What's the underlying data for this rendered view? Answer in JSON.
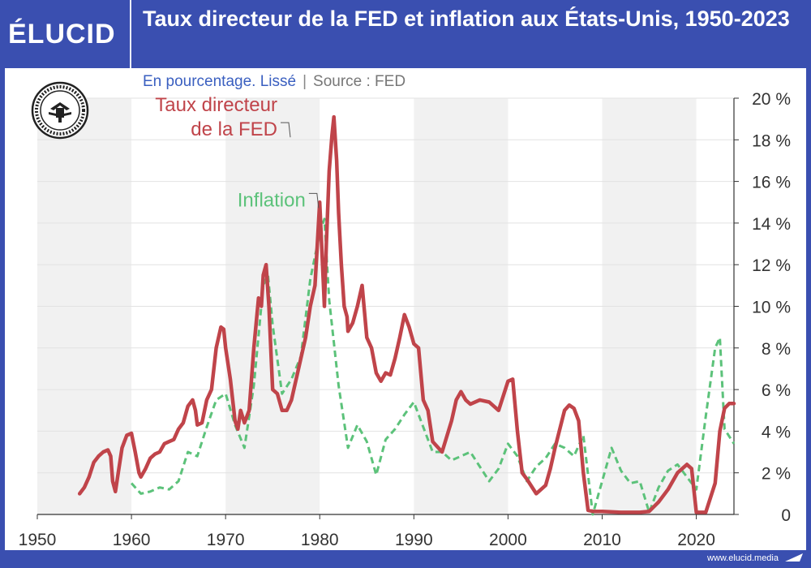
{
  "brand": {
    "logo_text": "ÉLUCID",
    "url": "www.elucid.media"
  },
  "title": "Taux directeur de la FED et inflation aux États-Unis, 1950-2023",
  "subtitle": {
    "main": "En pourcentage. Lissé",
    "separator": "|",
    "source": "Source : FED"
  },
  "seal_icon": "federal-reserve-seal-icon",
  "colors": {
    "header_bg": "#3a4fb0",
    "fed": "#c0444a",
    "inflation": "#5cc27a",
    "band": "#f1f1f1"
  },
  "chart_data": {
    "type": "line",
    "title": "Taux directeur de la FED et inflation aux États-Unis, 1950-2023",
    "xlim": [
      1950,
      2024
    ],
    "ylim": [
      0,
      20
    ],
    "x_ticks": [
      1950,
      1960,
      1970,
      1980,
      1990,
      2000,
      2010,
      2020
    ],
    "x_tick_labels": [
      "1950",
      "1960",
      "1970",
      "1980",
      "1990",
      "2000",
      "2010",
      "2020"
    ],
    "y_ticks": [
      0,
      2,
      4,
      6,
      8,
      10,
      12,
      14,
      16,
      18,
      20
    ],
    "y_tick_labels": [
      "0",
      "2 %",
      "4 %",
      "6 %",
      "8 %",
      "10 %",
      "12 %",
      "14 %",
      "16 %",
      "18 %",
      "20 %"
    ],
    "y_axis_side": "right",
    "grid": true,
    "series": [
      {
        "name": "Taux directeur de la FED",
        "style": "solid",
        "x": [
          1954.5,
          1955,
          1955.5,
          1956,
          1956.5,
          1957,
          1957.5,
          1957.8,
          1958,
          1958.3,
          1958.6,
          1959,
          1959.5,
          1960,
          1960.4,
          1960.8,
          1961,
          1961.5,
          1962,
          1962.5,
          1963,
          1963.5,
          1964,
          1964.5,
          1965,
          1965.5,
          1966,
          1966.5,
          1966.8,
          1967,
          1967.5,
          1968,
          1968.5,
          1969,
          1969.5,
          1969.8,
          1970,
          1970.5,
          1971,
          1971.3,
          1971.6,
          1972,
          1972.5,
          1973,
          1973.5,
          1973.8,
          1974,
          1974.3,
          1974.6,
          1974.9,
          1975,
          1975.5,
          1976,
          1976.5,
          1977,
          1977.5,
          1978,
          1978.5,
          1979,
          1979.5,
          1980,
          1980.3,
          1980.5,
          1980.7,
          1981,
          1981.3,
          1981.5,
          1981.8,
          1982,
          1982.3,
          1982.6,
          1982.9,
          1983,
          1983.5,
          1984,
          1984.5,
          1985,
          1985.5,
          1986,
          1986.5,
          1987,
          1987.5,
          1988,
          1988.5,
          1989,
          1989.5,
          1990,
          1990.5,
          1991,
          1991.5,
          1992,
          1993,
          1994,
          1994.5,
          1995,
          1995.5,
          1996,
          1997,
          1998,
          1999,
          2000,
          2000.5,
          2001,
          2001.5,
          2002,
          2003,
          2004,
          2004.5,
          2005,
          2006,
          2006.5,
          2007,
          2007.5,
          2008,
          2008.5,
          2009,
          2010,
          2012,
          2014,
          2015,
          2016,
          2017,
          2018,
          2019,
          2019.5,
          2020,
          2020.5,
          2021,
          2022,
          2022.5,
          2023,
          2023.5,
          2024
        ],
        "values": [
          1.0,
          1.3,
          1.8,
          2.5,
          2.8,
          3.0,
          3.1,
          2.8,
          1.6,
          1.1,
          2.0,
          3.2,
          3.8,
          3.9,
          3.0,
          2.0,
          1.8,
          2.2,
          2.7,
          2.9,
          3.0,
          3.4,
          3.5,
          3.6,
          4.1,
          4.4,
          5.2,
          5.5,
          5.0,
          4.3,
          4.4,
          5.5,
          6.0,
          8.0,
          9.0,
          8.9,
          8.0,
          6.5,
          4.5,
          4.1,
          5.0,
          4.4,
          5.0,
          8.0,
          10.4,
          10.0,
          11.5,
          12.0,
          10.0,
          7.0,
          6.0,
          5.8,
          5.0,
          5.0,
          5.5,
          6.5,
          7.5,
          8.5,
          10.0,
          11.0,
          15.0,
          12.0,
          10.0,
          13.0,
          16.5,
          18.2,
          19.1,
          17.0,
          14.5,
          12.0,
          10.0,
          9.5,
          8.8,
          9.2,
          10.0,
          11.0,
          8.5,
          8.0,
          6.8,
          6.4,
          6.8,
          6.7,
          7.5,
          8.5,
          9.6,
          9.0,
          8.2,
          8.0,
          5.5,
          5.0,
          3.5,
          3.0,
          4.5,
          5.5,
          5.9,
          5.5,
          5.3,
          5.5,
          5.4,
          5.0,
          6.4,
          6.5,
          4.0,
          2.0,
          1.7,
          1.0,
          1.4,
          2.2,
          3.2,
          5.0,
          5.25,
          5.1,
          4.5,
          2.0,
          0.2,
          0.15,
          0.15,
          0.1,
          0.1,
          0.15,
          0.6,
          1.2,
          2.0,
          2.4,
          2.2,
          0.1,
          0.1,
          0.1,
          1.5,
          4.0,
          5.1,
          5.33,
          5.33
        ]
      },
      {
        "name": "Inflation",
        "style": "dashed",
        "x": [
          1960,
          1961,
          1962,
          1963,
          1964,
          1965,
          1966,
          1967,
          1968,
          1969,
          1970,
          1971,
          1972,
          1973,
          1974,
          1974.5,
          1975,
          1976,
          1977,
          1978,
          1979,
          1980,
          1980.5,
          1981,
          1982,
          1983,
          1984,
          1985,
          1986,
          1987,
          1988,
          1989,
          1990,
          1991,
          1992,
          1993,
          1994,
          1995,
          1996,
          1997,
          1998,
          1999,
          2000,
          2001,
          2002,
          2003,
          2004,
          2005,
          2006,
          2007,
          2008,
          2009,
          2010,
          2011,
          2012,
          2013,
          2014,
          2015,
          2016,
          2017,
          2018,
          2019,
          2020,
          2021,
          2022,
          2022.5,
          2023,
          2024
        ],
        "values": [
          1.5,
          1.0,
          1.1,
          1.3,
          1.2,
          1.6,
          3.0,
          2.8,
          4.2,
          5.5,
          5.8,
          4.3,
          3.2,
          6.2,
          11.0,
          11.5,
          9.1,
          5.8,
          6.5,
          7.6,
          11.3,
          13.5,
          14.2,
          10.3,
          6.2,
          3.2,
          4.3,
          3.5,
          1.9,
          3.6,
          4.1,
          4.8,
          5.4,
          4.2,
          3.0,
          3.0,
          2.6,
          2.8,
          3.0,
          2.3,
          1.6,
          2.2,
          3.4,
          2.8,
          1.6,
          2.3,
          2.7,
          3.4,
          3.2,
          2.8,
          3.8,
          -0.4,
          1.6,
          3.2,
          2.1,
          1.5,
          1.6,
          0.1,
          1.3,
          2.1,
          2.4,
          1.8,
          1.2,
          4.7,
          8.0,
          8.5,
          4.1,
          3.4
        ]
      }
    ],
    "annotations": [
      {
        "text_lines": [
          "Taux directeur",
          "de la FED"
        ],
        "series": "Taux directeur de la FED",
        "x": 1975.5,
        "y": 18.2
      },
      {
        "text_lines": [
          "Inflation"
        ],
        "series": "Inflation",
        "x": 1978.5,
        "y": 14.8
      }
    ]
  }
}
